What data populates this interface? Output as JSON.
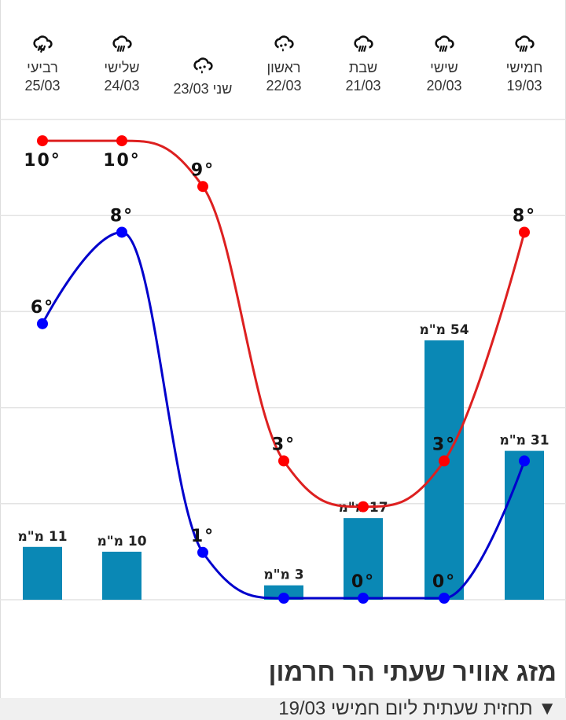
{
  "title": "מזג אוויר שעתי הר חרמון",
  "hourly_link": "▼ תחזית שעתית ליום חמישי 19/03",
  "days": [
    {
      "name": "חמישי",
      "date": "19/03",
      "icon": "rain-icon"
    },
    {
      "name": "שישי",
      "date": "20/03",
      "icon": "rain-icon"
    },
    {
      "name": "שבת",
      "date": "21/03",
      "icon": "rain-icon"
    },
    {
      "name": "ראשון",
      "date": "22/03",
      "icon": "showers-icon"
    },
    {
      "name": "שני",
      "date": "23/03",
      "icon": "showers-icon"
    },
    {
      "name": "שלישי",
      "date": "24/03",
      "icon": "rain-icon"
    },
    {
      "name": "רביעי",
      "date": "25/03",
      "icon": "thunderstorm-icon"
    }
  ],
  "chart_data": {
    "type": "bar+line",
    "categories": [
      "19/03",
      "20/03",
      "21/03",
      "22/03",
      "23/03",
      "24/03",
      "25/03"
    ],
    "x_direction": "right-to-left",
    "precip_unit": "מ\"מ",
    "temp_unit": "°",
    "series": [
      {
        "kind": "bar",
        "values": [
          31,
          54,
          17,
          3,
          0,
          10,
          11
        ],
        "labels": [
          "31 מ\"מ",
          "54 מ\"מ",
          "17 מ\"מ",
          "3 מ\"מ",
          "",
          "10 מ\"מ",
          "11 מ\"מ"
        ],
        "color": "#0a88b5"
      },
      {
        "kind": "line",
        "values": [
          8,
          3,
          2,
          3,
          9,
          10,
          10
        ],
        "labels": [
          "8°",
          "3°",
          "",
          "3°",
          "9°",
          "10°",
          "10°"
        ],
        "color": "#dd2020"
      },
      {
        "kind": "line",
        "values": [
          3,
          0,
          0,
          0,
          1,
          8,
          6
        ],
        "labels": [
          "",
          "0°",
          "0°",
          "",
          "1°",
          "8°",
          "6°"
        ],
        "color": "#0000cc"
      }
    ],
    "precip_ylim": [
      0,
      100
    ],
    "temp_ylim": [
      0,
      10.5
    ],
    "grid": true
  }
}
